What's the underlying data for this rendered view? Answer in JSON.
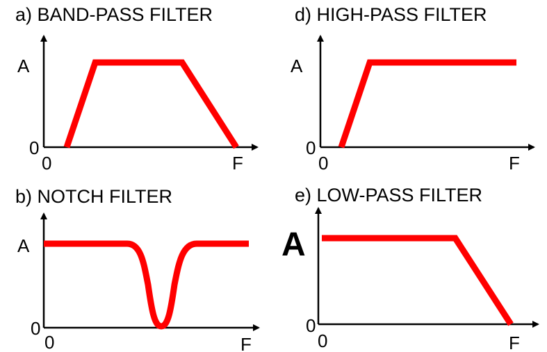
{
  "colors": {
    "curve": "#ff0000",
    "axes": "#000000",
    "background": "#ffffff"
  },
  "panels": [
    {
      "id": "a",
      "title": "a) BAND-PASS FILTER",
      "y_label": "A",
      "y_zero": "0",
      "x_zero": "0",
      "x_label": "F",
      "response": "band-pass"
    },
    {
      "id": "d",
      "title": "d) HIGH-PASS FILTER",
      "y_label": "A",
      "y_zero": "0",
      "x_zero": "0",
      "x_label": "F",
      "response": "high-pass"
    },
    {
      "id": "b",
      "title": "b) NOTCH FILTER",
      "y_label": "A",
      "y_zero": "0",
      "x_zero": "0",
      "x_label": "F",
      "response": "notch"
    },
    {
      "id": "e",
      "title": "e) LOW-PASS FILTER",
      "y_label": "A",
      "y_zero": "0",
      "x_zero": "0",
      "x_label": "F",
      "response": "low-pass"
    }
  ]
}
